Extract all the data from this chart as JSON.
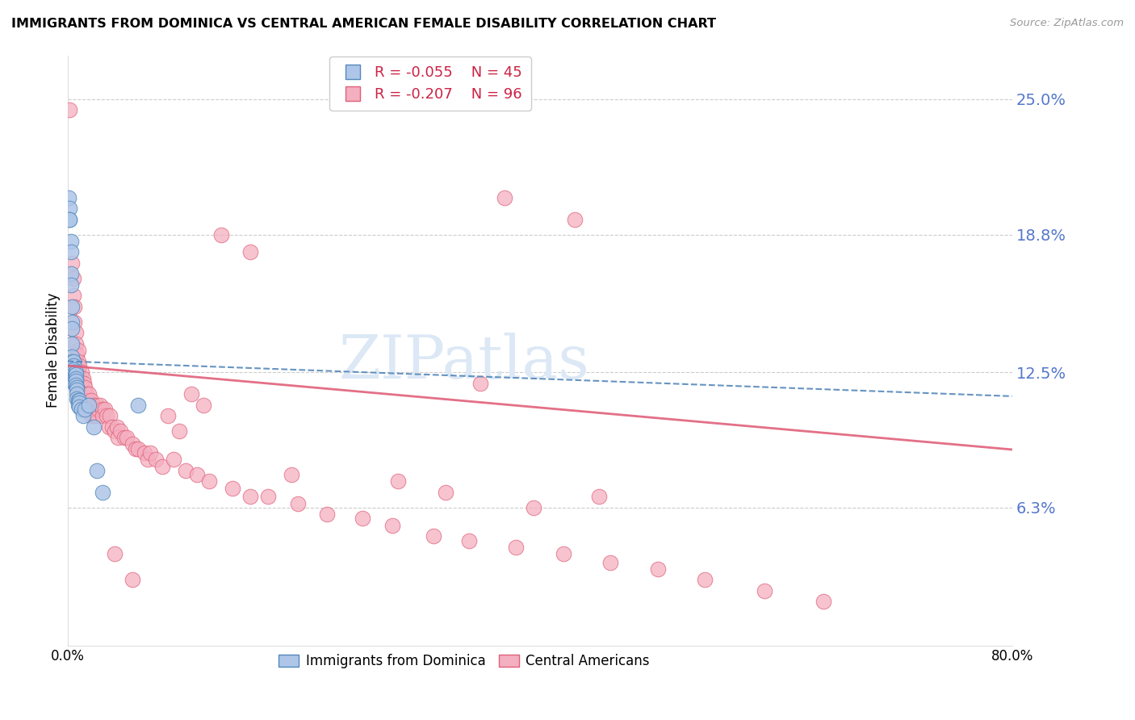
{
  "title": "IMMIGRANTS FROM DOMINICA VS CENTRAL AMERICAN FEMALE DISABILITY CORRELATION CHART",
  "source": "Source: ZipAtlas.com",
  "ylabel": "Female Disability",
  "ytick_labels": [
    "25.0%",
    "18.8%",
    "12.5%",
    "6.3%"
  ],
  "ytick_values": [
    0.25,
    0.188,
    0.125,
    0.063
  ],
  "xlim": [
    0.0,
    0.8
  ],
  "ylim": [
    0.0,
    0.27
  ],
  "legend_r1": "R = -0.055",
  "legend_n1": "N = 45",
  "legend_r2": "R = -0.207",
  "legend_n2": "N = 96",
  "color_blue": "#aec6e8",
  "color_pink": "#f4afc0",
  "line_blue": "#5588bb",
  "line_pink": "#e0607a",
  "watermark": "ZIPatlas",
  "watermark_color": "#dce8f5",
  "blue_x": [
    0.001,
    0.002,
    0.002,
    0.002,
    0.003,
    0.003,
    0.003,
    0.003,
    0.004,
    0.004,
    0.004,
    0.004,
    0.004,
    0.004,
    0.005,
    0.005,
    0.005,
    0.005,
    0.005,
    0.006,
    0.006,
    0.006,
    0.006,
    0.007,
    0.007,
    0.007,
    0.007,
    0.007,
    0.008,
    0.008,
    0.008,
    0.008,
    0.009,
    0.009,
    0.01,
    0.01,
    0.01,
    0.012,
    0.013,
    0.015,
    0.018,
    0.022,
    0.025,
    0.03,
    0.06
  ],
  "blue_y": [
    0.205,
    0.2,
    0.195,
    0.195,
    0.185,
    0.18,
    0.17,
    0.165,
    0.155,
    0.148,
    0.145,
    0.138,
    0.132,
    0.13,
    0.13,
    0.128,
    0.126,
    0.125,
    0.124,
    0.123,
    0.122,
    0.121,
    0.12,
    0.125,
    0.124,
    0.122,
    0.121,
    0.119,
    0.118,
    0.117,
    0.115,
    0.113,
    0.112,
    0.11,
    0.112,
    0.111,
    0.109,
    0.108,
    0.105,
    0.108,
    0.11,
    0.1,
    0.08,
    0.07,
    0.11
  ],
  "pink_x": [
    0.002,
    0.004,
    0.005,
    0.005,
    0.006,
    0.006,
    0.007,
    0.007,
    0.008,
    0.008,
    0.009,
    0.009,
    0.009,
    0.01,
    0.01,
    0.011,
    0.012,
    0.012,
    0.013,
    0.013,
    0.014,
    0.015,
    0.015,
    0.016,
    0.016,
    0.017,
    0.018,
    0.018,
    0.019,
    0.02,
    0.02,
    0.021,
    0.022,
    0.023,
    0.024,
    0.025,
    0.025,
    0.026,
    0.028,
    0.03,
    0.03,
    0.032,
    0.033,
    0.035,
    0.036,
    0.038,
    0.04,
    0.042,
    0.043,
    0.045,
    0.048,
    0.05,
    0.055,
    0.058,
    0.06,
    0.065,
    0.068,
    0.07,
    0.075,
    0.08,
    0.09,
    0.1,
    0.11,
    0.12,
    0.14,
    0.155,
    0.17,
    0.195,
    0.22,
    0.25,
    0.275,
    0.31,
    0.34,
    0.38,
    0.42,
    0.46,
    0.5,
    0.54,
    0.59,
    0.64,
    0.395,
    0.45,
    0.32,
    0.28,
    0.19,
    0.43,
    0.37,
    0.13,
    0.155,
    0.35,
    0.085,
    0.095,
    0.105,
    0.115,
    0.04,
    0.055
  ],
  "pink_y": [
    0.245,
    0.175,
    0.168,
    0.16,
    0.155,
    0.148,
    0.143,
    0.138,
    0.133,
    0.128,
    0.135,
    0.13,
    0.125,
    0.128,
    0.123,
    0.12,
    0.125,
    0.118,
    0.122,
    0.115,
    0.12,
    0.118,
    0.112,
    0.115,
    0.108,
    0.112,
    0.115,
    0.108,
    0.11,
    0.112,
    0.105,
    0.108,
    0.11,
    0.105,
    0.108,
    0.11,
    0.105,
    0.108,
    0.11,
    0.108,
    0.105,
    0.108,
    0.105,
    0.1,
    0.105,
    0.1,
    0.098,
    0.1,
    0.095,
    0.098,
    0.095,
    0.095,
    0.092,
    0.09,
    0.09,
    0.088,
    0.085,
    0.088,
    0.085,
    0.082,
    0.085,
    0.08,
    0.078,
    0.075,
    0.072,
    0.068,
    0.068,
    0.065,
    0.06,
    0.058,
    0.055,
    0.05,
    0.048,
    0.045,
    0.042,
    0.038,
    0.035,
    0.03,
    0.025,
    0.02,
    0.063,
    0.068,
    0.07,
    0.075,
    0.078,
    0.195,
    0.205,
    0.188,
    0.18,
    0.12,
    0.105,
    0.098,
    0.115,
    0.11,
    0.042,
    0.03
  ]
}
